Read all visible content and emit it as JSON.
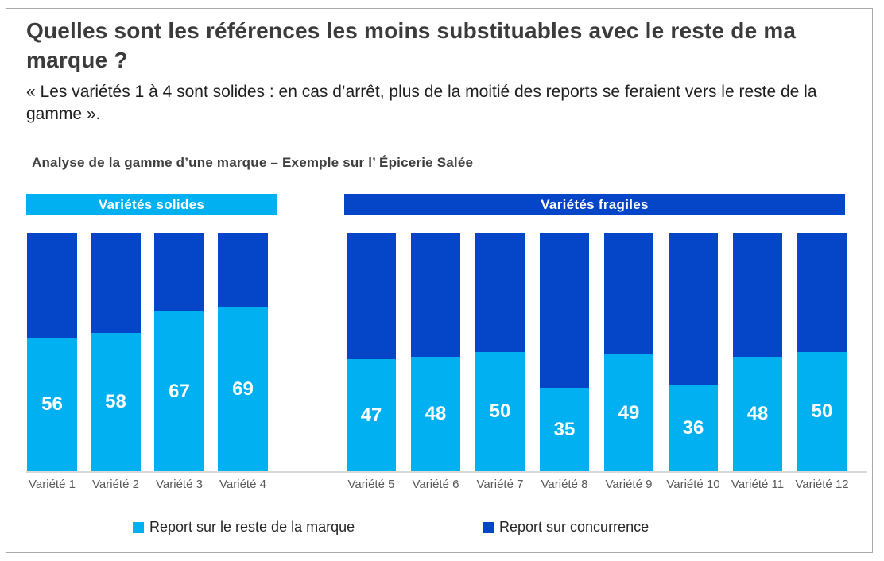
{
  "page": {
    "title": "Quelles sont les références les moins substituables avec le reste de ma marque ?",
    "quote": "« Les variétés 1 à 4 sont solides : en cas d’arrêt, plus de la moitié des reports se feraient vers le reste de la gamme ».",
    "subtitle": "Analyse de la gamme d’une marque – Exemple sur l’ Épicerie Salée"
  },
  "colors": {
    "light_blue": "#00b0f0",
    "dark_blue": "#0545c8",
    "frame_border": "#a9a9a9",
    "axis_gray": "#d9d9d9",
    "category_gray": "#595959",
    "title_gray": "#3b3b3b",
    "value_label": "#ffffff"
  },
  "legend": [
    {
      "label": "Report sur le reste de la marque",
      "color": "#00b0f0"
    },
    {
      "label": "Report sur concurrence",
      "color": "#0545c8"
    }
  ],
  "chart_data": {
    "type": "bar",
    "stacked": true,
    "percent_stacked": true,
    "ylim": [
      0,
      100
    ],
    "grid": false,
    "legend_position": "bottom",
    "value_labels": "shown on light segment only, white bold, centered in segment",
    "groups": [
      {
        "banner": "Variétés solides",
        "categories": [
          "Variété 1",
          "Variété 2",
          "Variété 3",
          "Variété 4"
        ],
        "series": [
          {
            "name": "Report sur le reste de la marque",
            "color": "#00b0f0",
            "values": [
              56,
              58,
              67,
              69
            ]
          },
          {
            "name": "Report sur concurrence",
            "color": "#0545c8",
            "values": [
              44,
              42,
              33,
              31
            ]
          }
        ]
      },
      {
        "banner": "Variétés fragiles",
        "categories": [
          "Variété 5",
          "Variété 6",
          "Variété 7",
          "Variété 8",
          "Variété 9",
          "Variété 10",
          "Variété 11",
          "Variété 12"
        ],
        "series": [
          {
            "name": "Report sur le reste de la marque",
            "color": "#00b0f0",
            "values": [
              47,
              48,
              50,
              35,
              49,
              36,
              48,
              50
            ]
          },
          {
            "name": "Report sur concurrence",
            "color": "#0545c8",
            "values": [
              53,
              52,
              50,
              65,
              51,
              64,
              52,
              50
            ]
          }
        ]
      }
    ]
  }
}
